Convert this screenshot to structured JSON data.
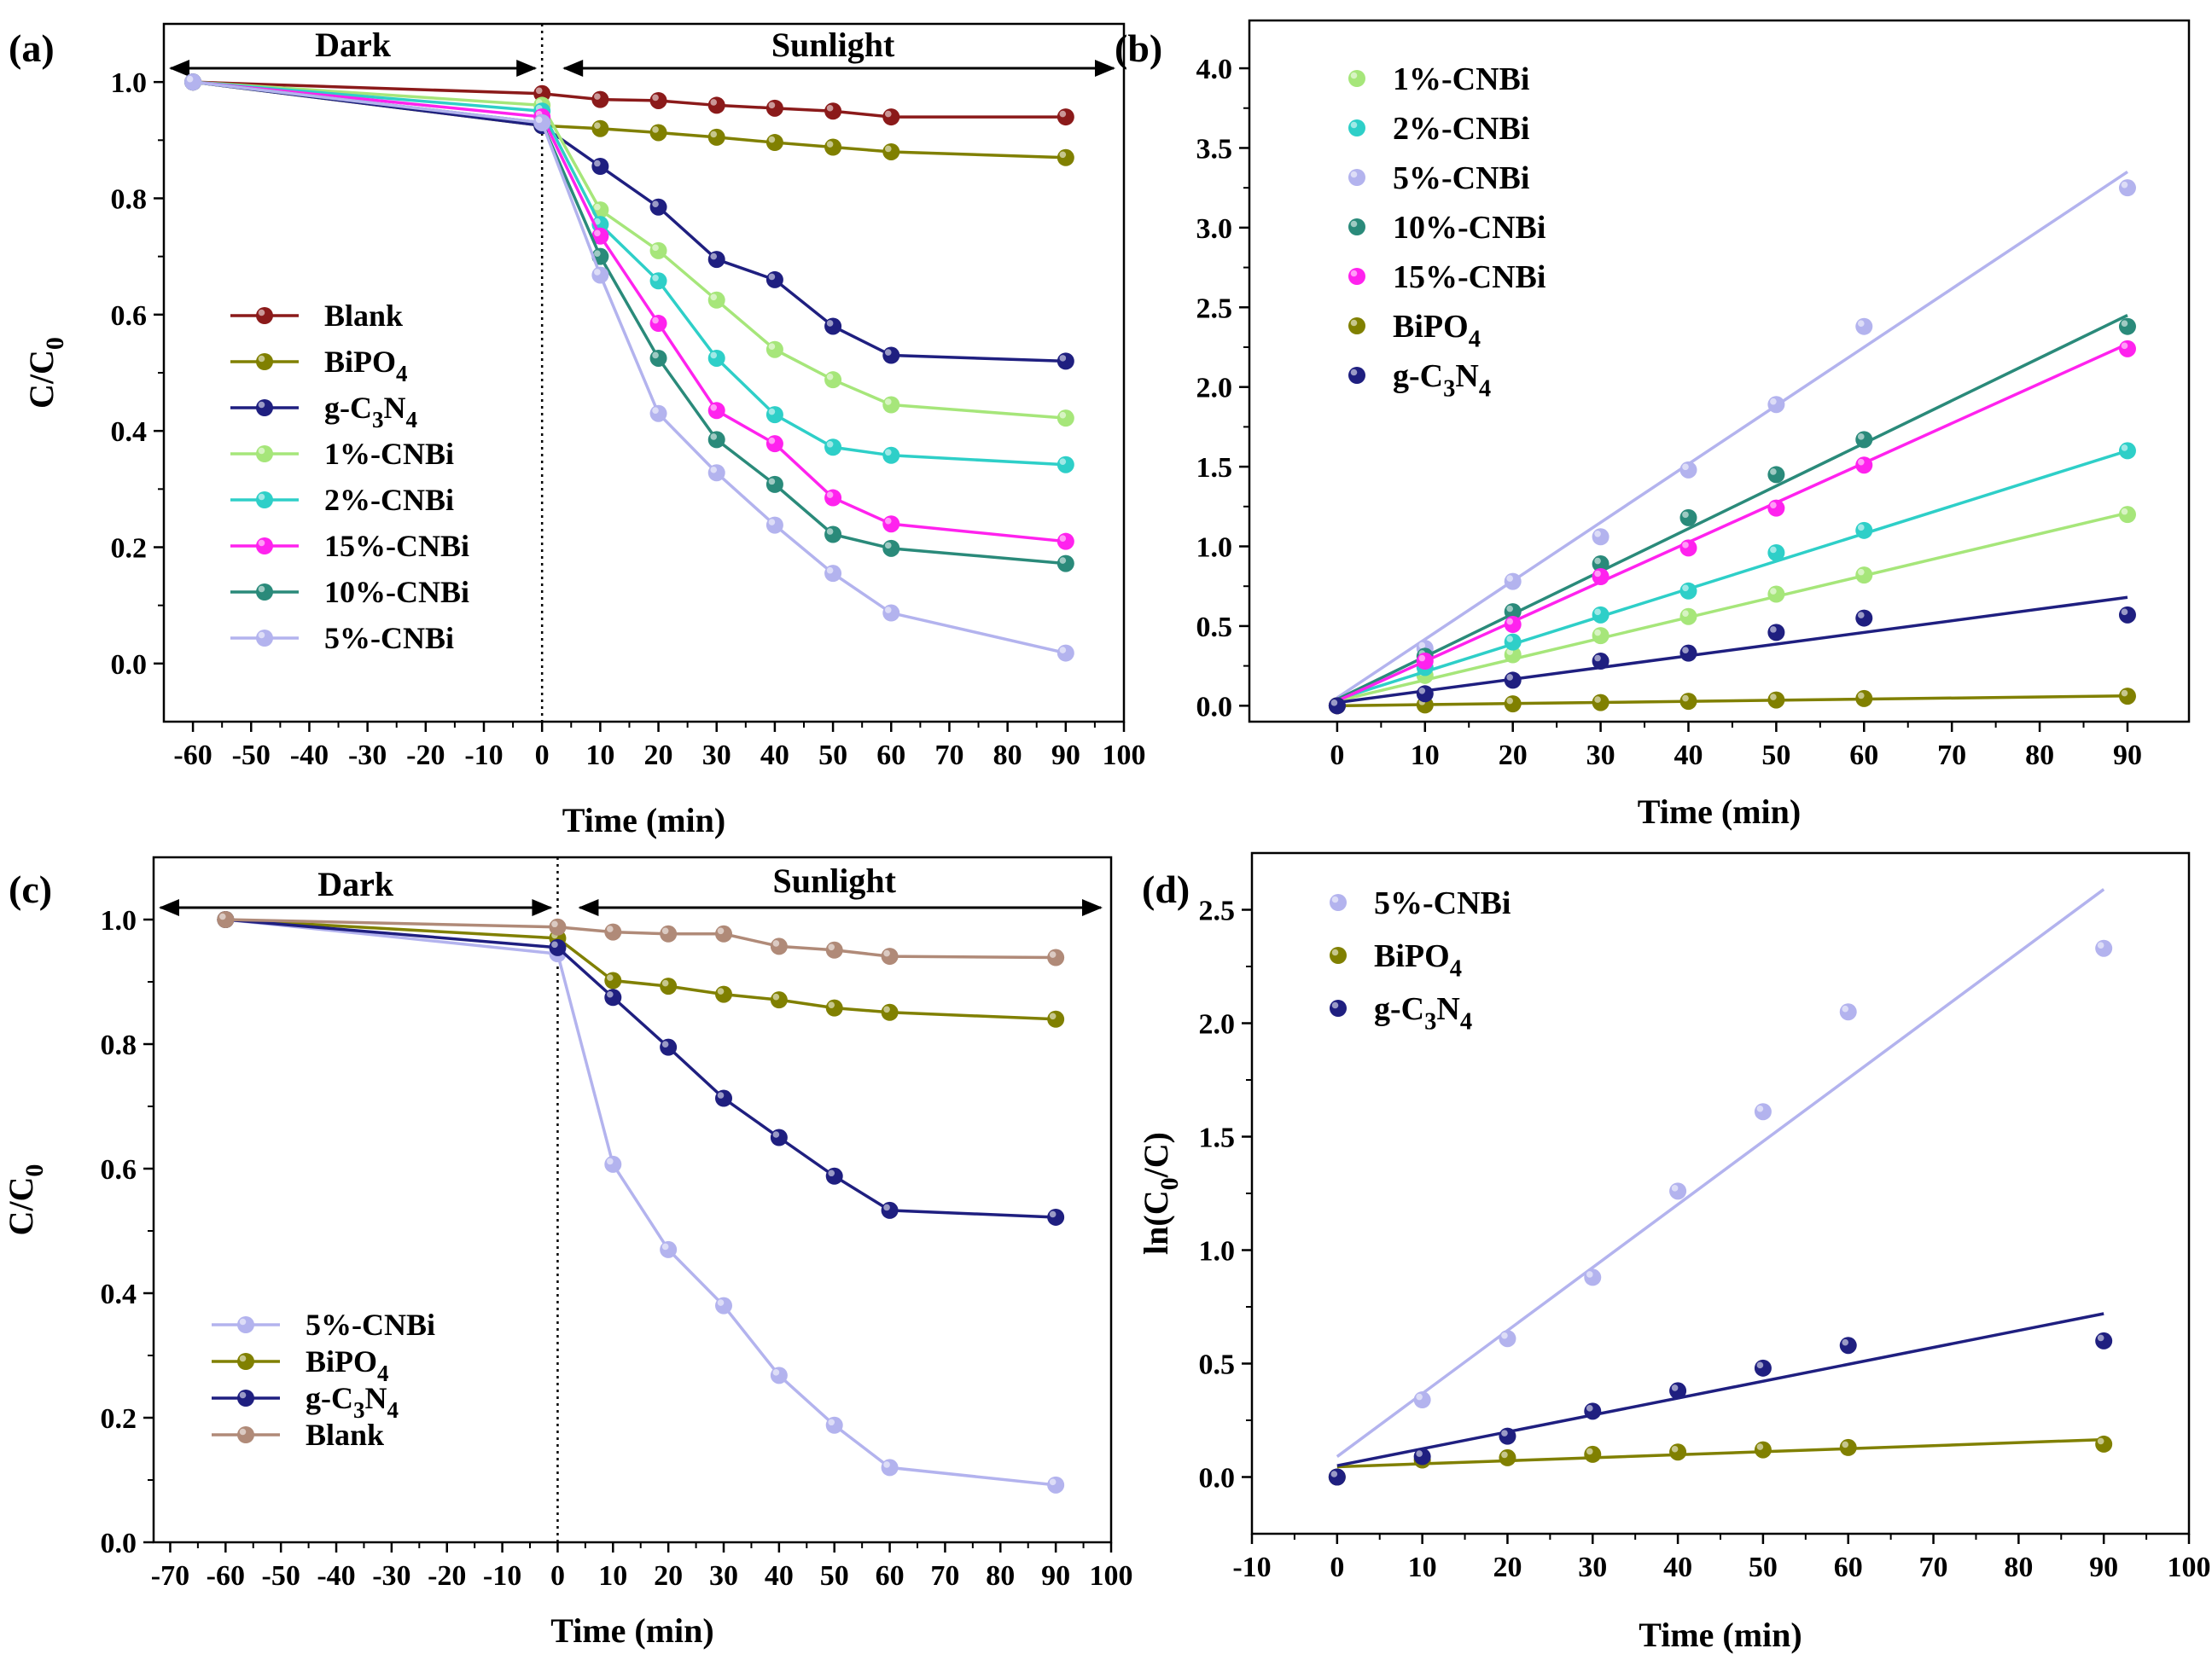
{
  "chart_data": [
    {
      "id": "a",
      "panel_label": "(a)",
      "type": "line",
      "xlabel": "Time (min)",
      "ylabel_main": "C/C",
      "ylabel_sub": "0",
      "xlim": [
        -65,
        100
      ],
      "ylim": [
        -0.1,
        1.1
      ],
      "xticks": [
        -60,
        -50,
        -40,
        -30,
        -20,
        -10,
        0,
        10,
        20,
        30,
        40,
        50,
        60,
        70,
        80,
        90,
        100
      ],
      "yticks": [
        0.0,
        0.2,
        0.4,
        0.6,
        0.8,
        1.0
      ],
      "ytick_labels": [
        "0.0",
        "0.2",
        "0.4",
        "0.6",
        "0.8",
        "1.0"
      ],
      "dark_label": "Dark",
      "sunlight_label": "Sunlight",
      "legend_position": "left",
      "series": [
        {
          "name": "Blank",
          "sub": "",
          "tail": "",
          "color": "#8b1a1a",
          "x": [
            -60,
            0,
            10,
            20,
            30,
            40,
            50,
            60,
            90
          ],
          "y": [
            1.0,
            0.98,
            0.97,
            0.968,
            0.96,
            0.955,
            0.95,
            0.94,
            0.94
          ]
        },
        {
          "name": "BiPO",
          "sub": "4",
          "tail": "",
          "color": "#808000",
          "x": [
            -60,
            0,
            10,
            20,
            30,
            40,
            50,
            60,
            90
          ],
          "y": [
            1.0,
            0.925,
            0.92,
            0.913,
            0.905,
            0.896,
            0.888,
            0.88,
            0.87
          ]
        },
        {
          "name": "g-C",
          "sub": "3",
          "tail": "N",
          "sub2": "4",
          "color": "#1f1f80",
          "x": [
            -60,
            0,
            10,
            20,
            30,
            40,
            50,
            60,
            90
          ],
          "y": [
            1.0,
            0.925,
            0.855,
            0.785,
            0.695,
            0.66,
            0.58,
            0.53,
            0.52
          ]
        },
        {
          "name": "1%-CNBi",
          "sub": "",
          "tail": "",
          "color": "#a6e67a",
          "x": [
            -60,
            0,
            10,
            20,
            30,
            40,
            50,
            60,
            90
          ],
          "y": [
            1.0,
            0.96,
            0.78,
            0.71,
            0.625,
            0.54,
            0.488,
            0.445,
            0.422
          ]
        },
        {
          "name": "2%-CNBi",
          "sub": "",
          "tail": "",
          "color": "#2ecfc8",
          "x": [
            -60,
            0,
            10,
            20,
            30,
            40,
            50,
            60,
            90
          ],
          "y": [
            1.0,
            0.95,
            0.755,
            0.658,
            0.525,
            0.428,
            0.372,
            0.358,
            0.342
          ]
        },
        {
          "name": "15%-CNBi",
          "sub": "",
          "tail": "",
          "color": "#ff22ee",
          "x": [
            -60,
            0,
            10,
            20,
            30,
            40,
            50,
            60,
            90
          ],
          "y": [
            1.0,
            0.94,
            0.735,
            0.585,
            0.435,
            0.378,
            0.285,
            0.24,
            0.21
          ]
        },
        {
          "name": "10%-CNBi",
          "sub": "",
          "tail": "",
          "color": "#2a8a7a",
          "x": [
            -60,
            0,
            10,
            20,
            30,
            40,
            50,
            60,
            90
          ],
          "y": [
            1.0,
            0.93,
            0.7,
            0.525,
            0.385,
            0.308,
            0.222,
            0.198,
            0.172
          ]
        },
        {
          "name": "5%-CNBi",
          "sub": "",
          "tail": "",
          "color": "#b3b3ee",
          "x": [
            -60,
            0,
            10,
            20,
            30,
            40,
            50,
            60,
            90
          ],
          "y": [
            1.0,
            0.93,
            0.668,
            0.43,
            0.328,
            0.238,
            0.155,
            0.087,
            0.018
          ]
        }
      ]
    },
    {
      "id": "b",
      "panel_label": "(b)",
      "type": "scatter",
      "xlabel": "Time (min)",
      "ylabel_main": "",
      "ylabel_sub": "",
      "xlim": [
        -10,
        97
      ],
      "ylim": [
        -0.1,
        4.3
      ],
      "xticks": [
        0,
        10,
        20,
        30,
        40,
        50,
        60,
        70,
        80,
        90
      ],
      "yticks": [
        0.0,
        0.5,
        1.0,
        1.5,
        2.0,
        2.5,
        3.0,
        3.5,
        4.0
      ],
      "ytick_labels": [
        "0.0",
        "0.5",
        "1.0",
        "1.5",
        "2.0",
        "2.5",
        "3.0",
        "3.5",
        "4.0"
      ],
      "legend_position": "top-left",
      "series": [
        {
          "name": "1%-CNBi",
          "sub": "",
          "tail": "",
          "color": "#a6e67a",
          "x": [
            0,
            10,
            20,
            30,
            40,
            50,
            60,
            90
          ],
          "y": [
            0,
            0.19,
            0.32,
            0.44,
            0.56,
            0.7,
            0.82,
            1.2
          ],
          "fit": [
            0.03,
            1.21
          ]
        },
        {
          "name": "2%-CNBi",
          "sub": "",
          "tail": "",
          "color": "#2ecfc8",
          "x": [
            0,
            10,
            20,
            30,
            40,
            50,
            60,
            90
          ],
          "y": [
            0,
            0.24,
            0.4,
            0.57,
            0.72,
            0.96,
            1.1,
            1.6
          ],
          "fit": [
            0.04,
            1.6
          ]
        },
        {
          "name": "5%-CNBi",
          "sub": "",
          "tail": "",
          "color": "#b3b3ee",
          "x": [
            0,
            10,
            20,
            30,
            40,
            50,
            60,
            90
          ],
          "y": [
            0,
            0.36,
            0.78,
            1.06,
            1.48,
            1.89,
            2.38,
            3.25
          ],
          "fit": [
            0.05,
            3.35
          ]
        },
        {
          "name": "10%-CNBi",
          "sub": "",
          "tail": "",
          "color": "#2a8a7a",
          "x": [
            0,
            10,
            20,
            30,
            40,
            50,
            60,
            90
          ],
          "y": [
            0,
            0.31,
            0.59,
            0.89,
            1.18,
            1.45,
            1.67,
            2.38
          ],
          "fit": [
            0.04,
            2.45
          ]
        },
        {
          "name": "15%-CNBi",
          "sub": "",
          "tail": "",
          "color": "#ff22ee",
          "x": [
            0,
            10,
            20,
            30,
            40,
            50,
            60,
            90
          ],
          "y": [
            0,
            0.28,
            0.51,
            0.81,
            0.99,
            1.24,
            1.51,
            2.24
          ],
          "fit": [
            0.03,
            2.27
          ]
        },
        {
          "name": "BiPO",
          "sub": "4",
          "tail": "",
          "color": "#808000",
          "x": [
            0,
            10,
            20,
            30,
            40,
            50,
            60,
            90
          ],
          "y": [
            0,
            0.005,
            0.012,
            0.02,
            0.028,
            0.036,
            0.045,
            0.06
          ],
          "fit": [
            0.0,
            0.062
          ]
        },
        {
          "name": "g-C",
          "sub": "3",
          "tail": "N",
          "sub2": "4",
          "color": "#1f1f80",
          "x": [
            0,
            10,
            20,
            30,
            40,
            50,
            60,
            90
          ],
          "y": [
            0,
            0.075,
            0.16,
            0.28,
            0.33,
            0.46,
            0.55,
            0.57
          ],
          "fit": [
            0.02,
            0.68
          ]
        }
      ]
    },
    {
      "id": "c",
      "panel_label": "(c)",
      "type": "line",
      "xlabel": "Time (min)",
      "ylabel_main": "C/C",
      "ylabel_sub": "0",
      "xlim": [
        -73,
        100
      ],
      "ylim": [
        0.0,
        1.1
      ],
      "xticks": [
        -70,
        -60,
        -50,
        -40,
        -30,
        -20,
        -10,
        0,
        10,
        20,
        30,
        40,
        50,
        60,
        70,
        80,
        90,
        100
      ],
      "yticks": [
        0.0,
        0.2,
        0.4,
        0.6,
        0.8,
        1.0
      ],
      "ytick_labels": [
        "0.0",
        "0.2",
        "0.4",
        "0.6",
        "0.8",
        "1.0"
      ],
      "dark_label": "Dark",
      "sunlight_label": "Sunlight",
      "legend_position": "bottom-left",
      "series": [
        {
          "name": "5%-CNBi",
          "sub": "",
          "tail": "",
          "color": "#b3b3ee",
          "x": [
            -60,
            0,
            10,
            20,
            30,
            40,
            50,
            60,
            90
          ],
          "y": [
            1.0,
            0.945,
            0.607,
            0.47,
            0.38,
            0.268,
            0.188,
            0.12,
            0.092
          ]
        },
        {
          "name": "BiPO",
          "sub": "4",
          "tail": "",
          "color": "#808000",
          "x": [
            -60,
            0,
            10,
            20,
            30,
            40,
            50,
            60,
            90
          ],
          "y": [
            1.0,
            0.97,
            0.902,
            0.893,
            0.88,
            0.871,
            0.858,
            0.851,
            0.84
          ]
        },
        {
          "name": "g-C",
          "sub": "3",
          "tail": "N",
          "sub2": "4",
          "color": "#1f1f80",
          "x": [
            -60,
            0,
            10,
            20,
            30,
            40,
            50,
            60,
            90
          ],
          "y": [
            1.0,
            0.955,
            0.875,
            0.795,
            0.713,
            0.65,
            0.588,
            0.533,
            0.522
          ]
        },
        {
          "name": "Blank",
          "sub": "",
          "tail": "",
          "color": "#b08a78",
          "x": [
            -60,
            0,
            10,
            20,
            30,
            40,
            50,
            60,
            90
          ],
          "y": [
            1.0,
            0.988,
            0.98,
            0.977,
            0.977,
            0.957,
            0.951,
            0.941,
            0.939
          ]
        }
      ]
    },
    {
      "id": "d",
      "panel_label": "(d)",
      "type": "scatter",
      "xlabel": "Time (min)",
      "ylabel_main": "ln(C",
      "ylabel_sub": "0",
      "ylabel_tail": "/C)",
      "xlim": [
        -10,
        100
      ],
      "ylim": [
        -0.25,
        2.75
      ],
      "xticks": [
        -10,
        0,
        10,
        20,
        30,
        40,
        50,
        60,
        70,
        80,
        90,
        100
      ],
      "yticks": [
        0.0,
        0.5,
        1.0,
        1.5,
        2.0,
        2.5
      ],
      "ytick_labels": [
        "0.0",
        "0.5",
        "1.0",
        "1.5",
        "2.0",
        "2.5"
      ],
      "legend_position": "top-left",
      "series": [
        {
          "name": "5%-CNBi",
          "sub": "",
          "tail": "",
          "color": "#b3b3ee",
          "x": [
            0,
            10,
            20,
            30,
            40,
            50,
            60,
            90
          ],
          "y": [
            0,
            0.34,
            0.61,
            0.88,
            1.26,
            1.61,
            2.05,
            2.33
          ],
          "fit": [
            0.09,
            2.59
          ]
        },
        {
          "name": "BiPO",
          "sub": "4",
          "tail": "",
          "color": "#808000",
          "x": [
            0,
            10,
            20,
            30,
            40,
            50,
            60,
            90
          ],
          "y": [
            0,
            0.075,
            0.085,
            0.1,
            0.11,
            0.12,
            0.13,
            0.145
          ],
          "fit": [
            0.045,
            0.165
          ]
        },
        {
          "name": "g-C",
          "sub": "3",
          "tail": "N",
          "sub2": "4",
          "color": "#1f1f80",
          "x": [
            0,
            10,
            20,
            30,
            40,
            50,
            60,
            90
          ],
          "y": [
            0,
            0.09,
            0.18,
            0.29,
            0.38,
            0.48,
            0.58,
            0.6
          ],
          "fit": [
            0.05,
            0.72
          ]
        }
      ]
    }
  ]
}
